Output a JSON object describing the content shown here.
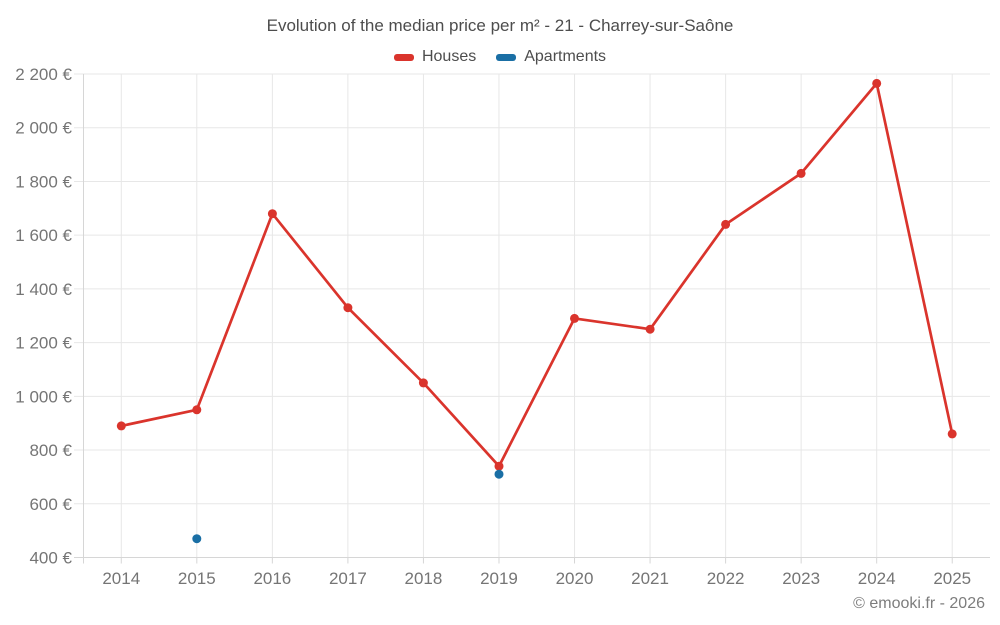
{
  "chart_data": {
    "type": "line",
    "title": "Evolution of the median price per m² - 21 - Charrey-sur-Saône",
    "categories": [
      "2014",
      "2015",
      "2016",
      "2017",
      "2018",
      "2019",
      "2020",
      "2021",
      "2022",
      "2023",
      "2024",
      "2025"
    ],
    "series": [
      {
        "name": "Houses",
        "color": "#da342c",
        "values": [
          890,
          950,
          1680,
          1330,
          1050,
          740,
          1290,
          1250,
          1640,
          1830,
          2165,
          860
        ]
      },
      {
        "name": "Apartments",
        "color": "#1a6fa5",
        "values": [
          null,
          470,
          null,
          null,
          null,
          710,
          null,
          null,
          null,
          null,
          null,
          null
        ]
      }
    ],
    "ylim": [
      400,
      2200
    ],
    "yticks": [
      {
        "value": 400,
        "label": "400 €"
      },
      {
        "value": 600,
        "label": "600 €"
      },
      {
        "value": 800,
        "label": "800 €"
      },
      {
        "value": 1000,
        "label": "1 000 €"
      },
      {
        "value": 1200,
        "label": "1 200 €"
      },
      {
        "value": 1400,
        "label": "1 400 €"
      },
      {
        "value": 1600,
        "label": "1 600 €"
      },
      {
        "value": 1800,
        "label": "1 800 €"
      },
      {
        "value": 2000,
        "label": "2 000 €"
      },
      {
        "value": 2200,
        "label": "2 200 €"
      }
    ],
    "grid": true,
    "legend_position": "top"
  },
  "footer": {
    "copyright": "© emooki.fr - 2026"
  }
}
